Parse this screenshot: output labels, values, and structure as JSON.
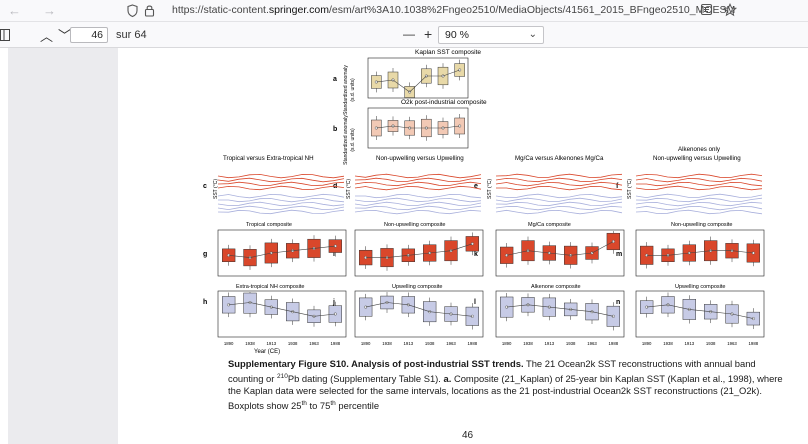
{
  "browser": {
    "url_prefix": "https://static-content.",
    "url_domain": "springer.com",
    "url_suffix": "/esm/art%3A10.1038%2Fngeo2510/MediaObjects/41561_2015_BFngeo2510_MOESM"
  },
  "viewer": {
    "page_number": "46",
    "page_total": "sur 64",
    "zoom_minus": "—",
    "zoom_plus": "+",
    "zoom_value": "90 %"
  },
  "figure": {
    "panel_a_title": "Kaplan SST composite",
    "panel_b_title": "O2k post-industrial  composite",
    "ylabel_std": "Standardized anomaly",
    "ylabel_units": "(s.d. units)",
    "ylabel_sst": "SST (°C)",
    "col1_header": "Tropical  versus  Extra-tropical NH",
    "col2_header": "Non-upwelling versus  Upwelling",
    "col3_header": "Mg/Ca versus  Alkenones Mg/Ca",
    "col4_header_line1": "Alkenones only",
    "col4_header_line2": "Non-upwelling versus  Upwelling",
    "g_title": "Tropical composite",
    "h_title": "Extra-tropical NH composite",
    "i_title": "Non-upwelling composite",
    "j_title": "Upwelling composite",
    "k_title": "Mg/Ca composite",
    "l_title": "Alkenone composite",
    "m_title": "Non-upwelling composite",
    "n_title": "Upwelling composite",
    "xlabel": "Year (CE)",
    "x_ticks": [
      "1890",
      "1938",
      "1913",
      "1938",
      "1963",
      "1988"
    ],
    "labels": [
      "a",
      "b",
      "c",
      "d",
      "e",
      "f",
      "g",
      "i",
      "k",
      "m",
      "h",
      "j",
      "l",
      "n"
    ]
  },
  "caption": {
    "title": "Supplementary Figure S10. Analysis of post-industrial SST trends.",
    "text1": " The 21 Ocean2k SST reconstructions with annual band counting or ",
    "sup1": "210",
    "text2": "Pb dating (Supplementary Table S1). ",
    "bold_a": "a.",
    "text3": " Composite (21_Kaplan) of 25-year bin Kaplan SST (Kaplan et al., 1998), where the Kaplan data were selected for the same intervals, locations as the 21 post-industrial Ocean2k SST reconstructions (21_O2k). Boxplots show 25",
    "sup2": "th",
    "text4": " to 75",
    "sup3": "th",
    "text5": " percentile"
  },
  "page_footer": "46",
  "colors": {
    "red_box": "#d9472b",
    "blue_box": "#c7cbe6",
    "gutter": "#ebebee"
  },
  "icons": [
    "back-arrow-icon",
    "forward-arrow-icon",
    "shield-icon",
    "lock-icon",
    "reader-view-icon",
    "bookmark-star-icon",
    "sidebar-toggle-icon",
    "chevron-up-icon",
    "chevron-down-icon"
  ]
}
